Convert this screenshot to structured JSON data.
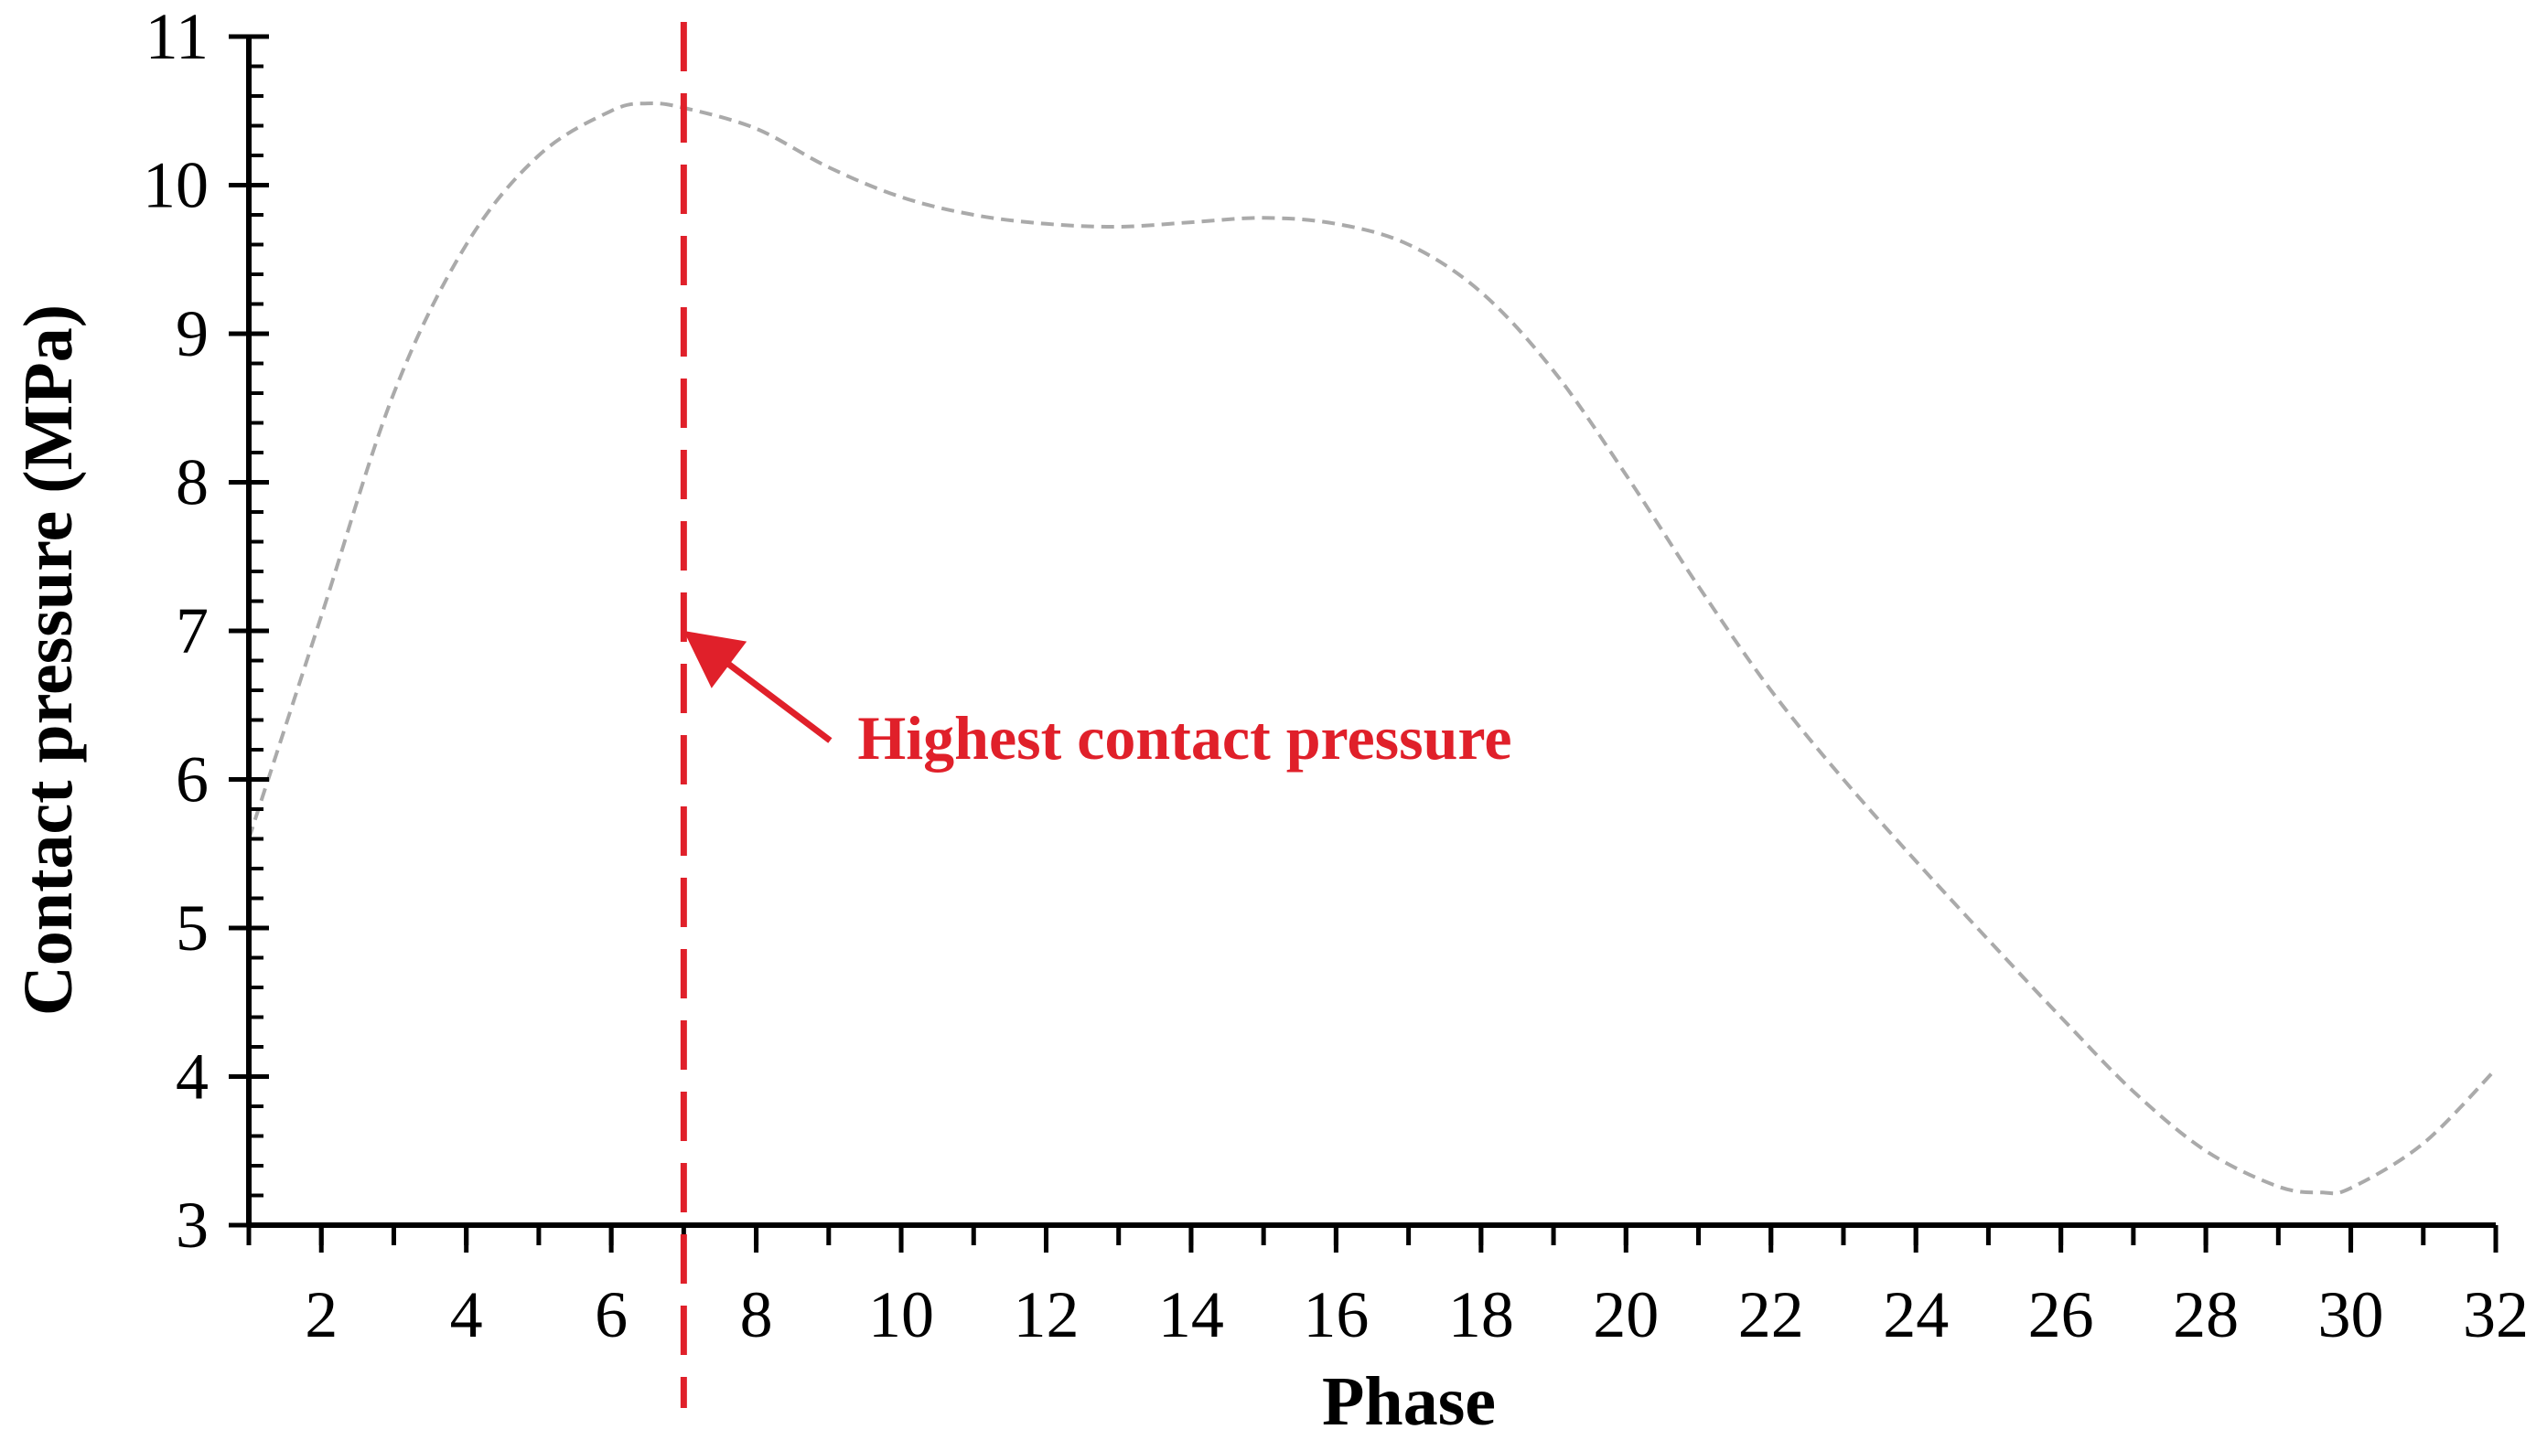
{
  "chart_data": {
    "type": "line",
    "title": "",
    "xlabel": "Phase",
    "ylabel": "Contact pressure (MPa)",
    "xlim": [
      1,
      32
    ],
    "ylim": [
      3,
      11
    ],
    "x_ticks": [
      2,
      4,
      6,
      8,
      10,
      12,
      14,
      16,
      18,
      20,
      22,
      24,
      26,
      28,
      30,
      32
    ],
    "x_minor_step": 1,
    "y_ticks": [
      3,
      4,
      5,
      6,
      7,
      8,
      9,
      10,
      11
    ],
    "y_minor_step": 0.2,
    "grid": false,
    "series": [
      {
        "color": "#aaaaaa",
        "line_style": "dashed",
        "x": [
          1,
          2,
          3,
          4,
          5,
          6,
          6.5,
          7,
          8,
          9,
          10,
          11,
          12,
          13,
          14,
          15,
          16,
          17,
          18,
          19,
          20,
          21,
          22,
          23,
          24,
          25,
          26,
          27,
          28,
          29,
          29.6,
          30,
          31,
          32
        ],
        "y": [
          5.6,
          7.1,
          8.6,
          9.6,
          10.2,
          10.5,
          10.55,
          10.52,
          10.38,
          10.12,
          9.92,
          9.8,
          9.74,
          9.72,
          9.75,
          9.78,
          9.74,
          9.6,
          9.28,
          8.75,
          8.05,
          7.3,
          6.6,
          6.0,
          5.45,
          4.92,
          4.4,
          3.9,
          3.5,
          3.26,
          3.22,
          3.25,
          3.55,
          4.05
        ]
      }
    ],
    "annotations": [
      {
        "type": "vertical_line",
        "x": 7,
        "color": "#e0202a",
        "line_style": "dashed"
      },
      {
        "type": "arrow_label",
        "text": "Highest contact pressure",
        "color": "#e0202a",
        "point_x": 7,
        "point_y": 7
      }
    ]
  }
}
